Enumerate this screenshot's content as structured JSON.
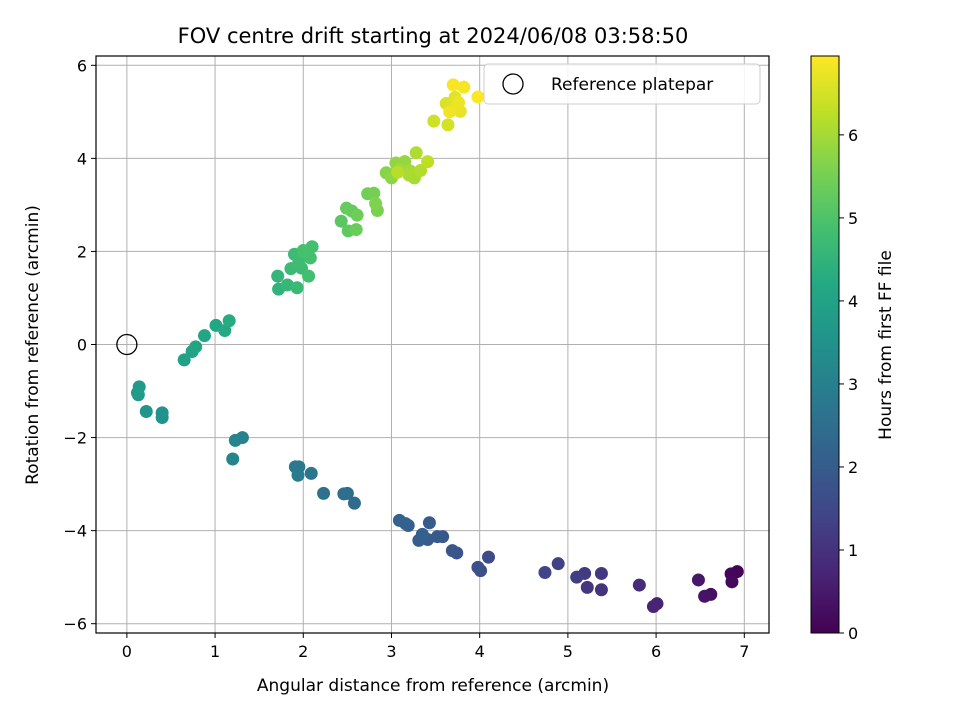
{
  "chart_data": {
    "type": "scatter",
    "title": "FOV centre drift starting at 2024/06/08 03:58:50",
    "xlabel": "Angular distance from reference (arcmin)",
    "ylabel": "Rotation from reference (arcmin)",
    "xlim": [
      -0.35,
      7.28
    ],
    "ylim": [
      -6.2,
      6.2
    ],
    "xticks": [
      0,
      1,
      2,
      3,
      4,
      5,
      6,
      7
    ],
    "yticks": [
      -6,
      -4,
      -2,
      0,
      2,
      4,
      6
    ],
    "xtick_labels": [
      "0",
      "1",
      "2",
      "3",
      "4",
      "5",
      "6",
      "7"
    ],
    "ytick_labels": [
      "−6",
      "−4",
      "−2",
      "0",
      "2",
      "4",
      "6"
    ],
    "grid": true,
    "legend": {
      "placement": "top-right",
      "entries": [
        "Reference platepar"
      ]
    },
    "reference_point": {
      "name": "Reference platepar",
      "x": 0,
      "y": 0,
      "marker": "open-circle"
    },
    "colorbar": {
      "label": "Hours from first FF file",
      "colormap": "viridis",
      "range": [
        0,
        6.95
      ],
      "ticks": [
        0,
        1,
        2,
        3,
        4,
        5,
        6
      ],
      "tick_labels": [
        "0",
        "1",
        "2",
        "3",
        "4",
        "5",
        "6"
      ]
    },
    "series": [
      {
        "x": [
          6.92,
          6.85,
          6.86,
          6.62,
          6.55,
          6.48,
          6.01,
          5.97,
          5.81,
          5.38,
          5.22,
          5.38,
          5.19,
          5.1,
          4.89,
          4.74,
          4.1,
          4.01,
          3.98,
          3.74,
          3.69,
          3.58,
          3.52,
          3.43,
          3.41,
          3.31,
          3.35,
          3.19,
          3.16,
          3.09,
          2.58,
          2.5,
          2.46,
          2.23,
          2.09,
          1.95,
          1.91,
          1.94,
          1.31,
          1.23,
          1.2,
          0.4,
          0.4,
          0.22,
          0.13,
          0.14,
          0.12,
          0.65,
          0.74,
          0.78,
          0.88,
          1.01,
          1.11,
          1.16,
          1.72,
          1.71,
          1.82,
          1.93,
          1.86,
          1.9,
          1.98,
          1.95,
          2.03,
          2.06,
          2.1,
          2.08,
          2.0,
          2.43,
          2.51,
          2.55,
          2.49,
          2.6,
          2.61,
          2.73,
          2.8,
          2.84,
          2.82,
          2.94,
          3.0,
          3.05,
          3.15,
          3.09,
          3.1,
          3.21,
          3.26,
          3.2,
          3.28,
          3.33,
          3.07,
          3.41,
          3.48,
          3.64,
          3.62,
          3.71,
          3.72,
          3.78,
          3.76,
          3.66,
          3.82,
          3.7,
          3.98
        ],
        "y": [
          -4.88,
          -4.93,
          -5.1,
          -5.37,
          -5.41,
          -5.06,
          -5.57,
          -5.63,
          -5.17,
          -5.27,
          -5.22,
          -4.92,
          -4.92,
          -5.0,
          -4.71,
          -4.9,
          -4.57,
          -4.86,
          -4.79,
          -4.48,
          -4.43,
          -4.13,
          -4.13,
          -3.83,
          -4.19,
          -4.21,
          -4.08,
          -3.89,
          -3.85,
          -3.78,
          -3.41,
          -3.2,
          -3.21,
          -3.2,
          -2.77,
          -2.63,
          -2.63,
          -2.81,
          -2.0,
          -2.06,
          -2.46,
          -1.47,
          -1.57,
          -1.44,
          -1.08,
          -0.91,
          -1.04,
          -0.33,
          -0.15,
          -0.05,
          0.19,
          0.41,
          0.3,
          0.51,
          1.19,
          1.47,
          1.28,
          1.22,
          1.63,
          1.94,
          1.64,
          1.78,
          1.99,
          1.47,
          2.1,
          1.86,
          2.02,
          2.65,
          2.44,
          2.87,
          2.93,
          2.47,
          2.78,
          3.24,
          3.25,
          2.88,
          3.03,
          3.69,
          3.58,
          3.9,
          3.93,
          3.76,
          3.75,
          3.73,
          3.58,
          3.64,
          4.12,
          3.74,
          3.7,
          3.93,
          4.8,
          4.72,
          5.18,
          5.06,
          5.31,
          5.01,
          5.2,
          5.0,
          5.53,
          5.58,
          5.32
        ],
        "hours": [
          0.05,
          0.1,
          0.15,
          0.3,
          0.35,
          0.45,
          0.65,
          0.7,
          0.85,
          1.05,
          1.1,
          1.15,
          1.2,
          1.25,
          1.35,
          1.4,
          1.6,
          1.65,
          1.7,
          1.8,
          1.85,
          1.9,
          1.95,
          2.0,
          2.02,
          2.05,
          2.08,
          2.12,
          2.15,
          2.2,
          2.4,
          2.45,
          2.5,
          2.55,
          2.7,
          2.75,
          2.8,
          2.85,
          3.05,
          3.1,
          3.15,
          3.5,
          3.55,
          3.6,
          3.7,
          3.75,
          3.8,
          3.95,
          4.0,
          4.05,
          4.1,
          4.15,
          4.2,
          4.25,
          4.5,
          4.55,
          4.6,
          4.65,
          4.7,
          4.72,
          4.75,
          4.78,
          4.8,
          4.82,
          4.85,
          4.88,
          4.9,
          5.15,
          5.2,
          5.25,
          5.3,
          5.35,
          5.4,
          5.45,
          5.5,
          5.55,
          5.6,
          5.7,
          5.75,
          5.8,
          5.85,
          5.9,
          5.95,
          6.0,
          6.02,
          6.05,
          6.1,
          6.15,
          6.2,
          6.25,
          6.45,
          6.5,
          6.55,
          6.6,
          6.65,
          6.7,
          6.75,
          6.8,
          6.85,
          6.9,
          6.93
        ]
      }
    ]
  },
  "colors": {
    "grid": "#b0b0b0",
    "axes": "#000000",
    "legend_border": "#cccccc"
  }
}
